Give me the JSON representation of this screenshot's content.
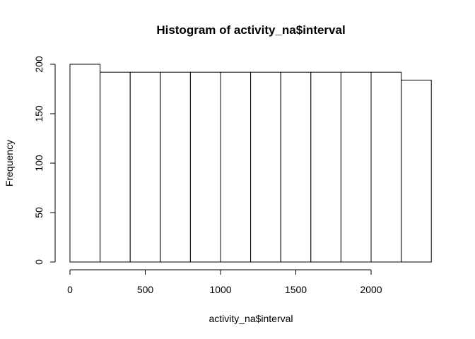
{
  "chart_data": {
    "type": "bar",
    "title": "Histogram of activity_na$interval",
    "xlabel": "activity_na$interval",
    "ylabel": "Frequency",
    "bins": [
      {
        "start": 0,
        "end": 200,
        "value": 200
      },
      {
        "start": 200,
        "end": 400,
        "value": 192
      },
      {
        "start": 400,
        "end": 600,
        "value": 192
      },
      {
        "start": 600,
        "end": 800,
        "value": 192
      },
      {
        "start": 800,
        "end": 1000,
        "value": 192
      },
      {
        "start": 1000,
        "end": 1200,
        "value": 192
      },
      {
        "start": 1200,
        "end": 1400,
        "value": 192
      },
      {
        "start": 1400,
        "end": 1600,
        "value": 192
      },
      {
        "start": 1600,
        "end": 1800,
        "value": 192
      },
      {
        "start": 1800,
        "end": 2000,
        "value": 192
      },
      {
        "start": 2000,
        "end": 2200,
        "value": 192
      },
      {
        "start": 2200,
        "end": 2400,
        "value": 184
      }
    ],
    "xticks": [
      0,
      500,
      1000,
      1500,
      2000
    ],
    "yticks": [
      0,
      50,
      100,
      150,
      200
    ],
    "xlim": [
      0,
      2400
    ],
    "ylim": [
      0,
      200
    ],
    "bar_fill": "#ffffff",
    "bar_stroke": "#000000"
  }
}
